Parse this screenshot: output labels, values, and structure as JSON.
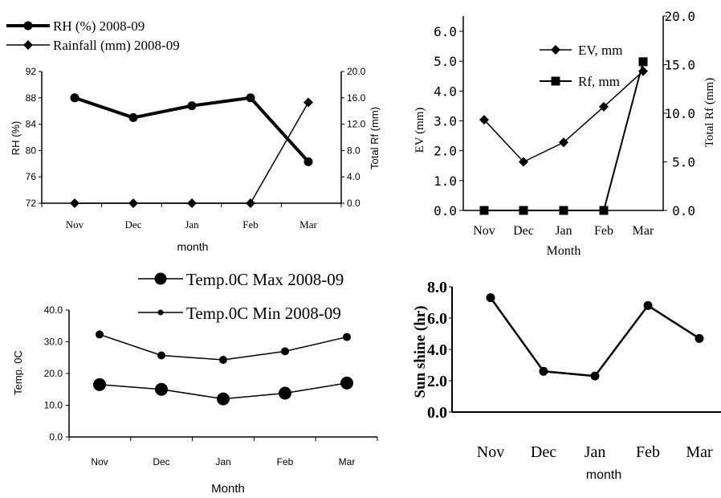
{
  "colors": {
    "ink": "#000000",
    "background": "#ffffff"
  },
  "chart_data": [
    {
      "type": "line",
      "categories": [
        "Nov",
        "Dec",
        "Jan",
        "Feb",
        "Mar"
      ],
      "xlabel": "month",
      "ylabel": "RH (%)",
      "y2label": "Total Rf (mm)",
      "ylim": [
        72,
        92
      ],
      "y2lim": [
        0,
        20
      ],
      "yticks": [
        "72",
        "76",
        "80",
        "84",
        "88",
        "92"
      ],
      "y2ticks": [
        "0.0",
        "4.0",
        "8.0",
        "12.0",
        "16.0",
        "20.0"
      ],
      "legend_position": "top-left",
      "series": [
        {
          "name": "RH (%) 2008-09",
          "axis": "left",
          "marker": "circle",
          "values": [
            88.0,
            85.0,
            86.8,
            88.0,
            78.3
          ]
        },
        {
          "name": "Rainfall (mm) 2008-09",
          "axis": "right",
          "marker": "diamond",
          "values": [
            0.0,
            0.0,
            0.0,
            0.0,
            15.3
          ]
        }
      ]
    },
    {
      "type": "line",
      "categories": [
        "Nov",
        "Dec",
        "Jan",
        "Feb",
        "Mar"
      ],
      "xlabel": "Month",
      "ylabel": "EV (mm)",
      "y2label": "Total Rf (mm)",
      "ylim": [
        0,
        6
      ],
      "y2lim": [
        0,
        20
      ],
      "yticks": [
        "0.0",
        "1.0",
        "2.0",
        "3.0",
        "4.0",
        "5.0",
        "6.0"
      ],
      "y2ticks": [
        "0.0",
        "5.0",
        "10.0",
        "15.0",
        "20.0"
      ],
      "legend_position": "top-right",
      "series": [
        {
          "name": "EV, mm",
          "axis": "left",
          "marker": "diamond",
          "values": [
            2.8,
            1.5,
            2.1,
            3.2,
            4.3
          ]
        },
        {
          "name": "Rf, mm",
          "axis": "right",
          "marker": "square",
          "values": [
            0.0,
            0.0,
            0.0,
            0.0,
            15.3
          ]
        }
      ]
    },
    {
      "type": "line",
      "categories": [
        "Nov",
        "Dec",
        "Jan",
        "Feb",
        "Mar"
      ],
      "xlabel": "Month",
      "ylabel": "Temp. 0C",
      "ylim": [
        0,
        40
      ],
      "yticks": [
        "0.0",
        "10.0",
        "20.0",
        "30.0",
        "40.0"
      ],
      "legend_position": "top",
      "series": [
        {
          "name": "Temp.0C Max 2008-09",
          "marker": "circle-large",
          "values": [
            16.5,
            15.0,
            12.0,
            13.8,
            17.0
          ]
        },
        {
          "name": "Temp.0C Min 2008-09",
          "marker": "circle-small",
          "values": [
            32.3,
            25.7,
            24.3,
            27.0,
            31.5
          ]
        }
      ]
    },
    {
      "type": "line",
      "categories": [
        "Nov",
        "Dec",
        "Jan",
        "Feb",
        "Mar"
      ],
      "xlabel": "month",
      "ylabel": "Sun shine (hr)",
      "ylim": [
        0,
        8
      ],
      "yticks": [
        "0.0",
        "2.0",
        "4.0",
        "6.0",
        "8.0"
      ],
      "series": [
        {
          "marker": "circle",
          "values": [
            7.3,
            2.6,
            2.3,
            6.8,
            4.7
          ]
        }
      ]
    }
  ]
}
